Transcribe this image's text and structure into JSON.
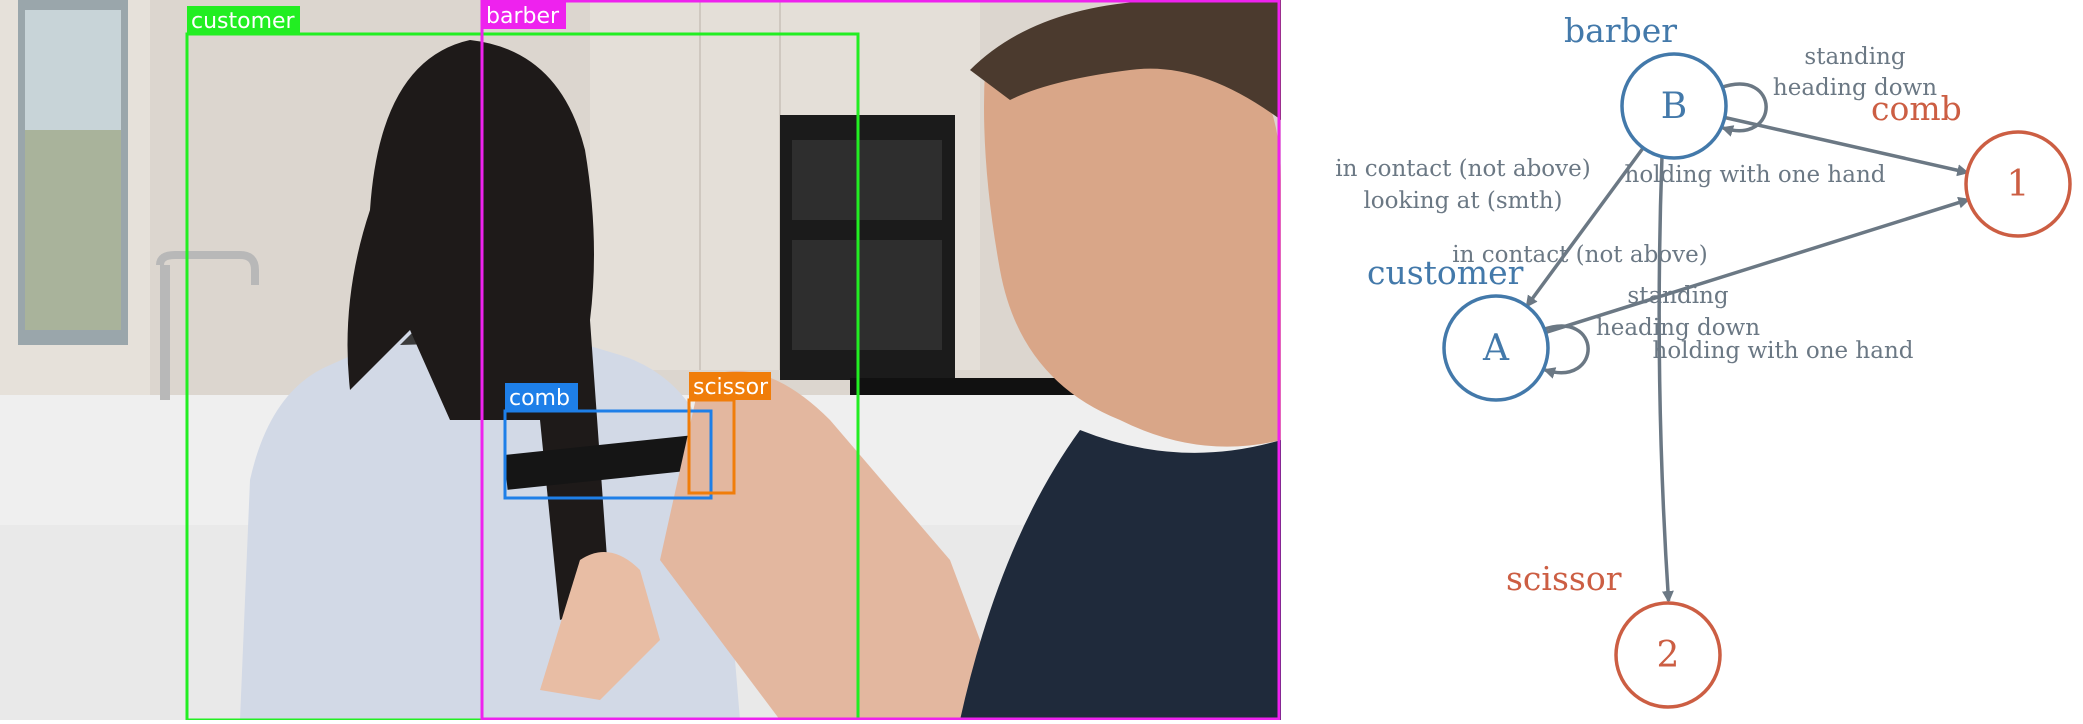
{
  "photo": {
    "boxes": [
      {
        "id": "customer",
        "label": "customer",
        "color": "#22ee22"
      },
      {
        "id": "barber",
        "label": "barber",
        "color": "#ee22ee"
      },
      {
        "id": "comb",
        "label": "comb",
        "color": "#1e7fe8"
      },
      {
        "id": "scissor",
        "label": "scissor",
        "color": "#f07d0a"
      }
    ]
  },
  "graph": {
    "colors": {
      "agent": "#4379aa",
      "object": "#cc5e43",
      "edge": "#6b7884"
    },
    "nodes": [
      {
        "id": "B",
        "letter": "B",
        "name": "barber",
        "kind": "agent"
      },
      {
        "id": "A",
        "letter": "A",
        "name": "customer",
        "kind": "agent"
      },
      {
        "id": "1",
        "letter": "1",
        "name": "comb",
        "kind": "object"
      },
      {
        "id": "2",
        "letter": "2",
        "name": "scissor",
        "kind": "object"
      }
    ],
    "edges": [
      {
        "id": "B-B",
        "from": "B",
        "to": "B",
        "labels": [
          "standing",
          "heading down"
        ]
      },
      {
        "id": "B-1",
        "from": "B",
        "to": "1",
        "labels": [
          "holding with one hand"
        ]
      },
      {
        "id": "B-A",
        "from": "B",
        "to": "A",
        "labels": [
          "in contact (not above)",
          "looking at (smth)"
        ]
      },
      {
        "id": "B-2",
        "from": "B",
        "to": "2",
        "labels": [
          "holding with one hand"
        ]
      },
      {
        "id": "A-1",
        "from": "A",
        "to": "1",
        "labels": [
          "in contact (not above)"
        ]
      },
      {
        "id": "A-A",
        "from": "A",
        "to": "A",
        "labels": [
          "standing",
          "heading down"
        ]
      }
    ]
  }
}
